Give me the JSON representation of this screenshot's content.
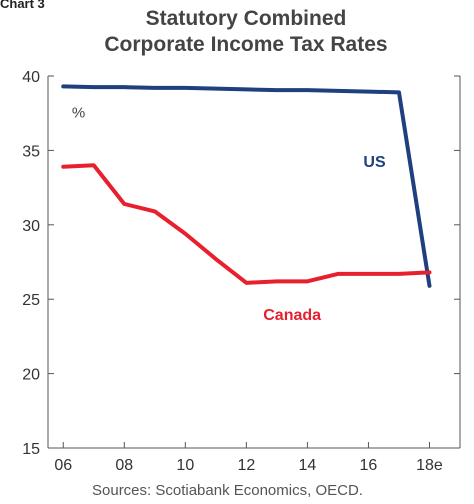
{
  "header": {
    "chart_label": "Chart 3",
    "title_line1": "Statutory Combined",
    "title_line2": "Corporate Income Tax Rates"
  },
  "footer": {
    "source": "Sources: Scotiabank Economics, OECD."
  },
  "colors": {
    "us": "#1f3f7f",
    "canada": "#e8202e",
    "axis": "#555555"
  },
  "chart_data": {
    "type": "line",
    "title": "Statutory Combined Corporate Income Tax Rates",
    "ylabel": "%",
    "ylim": [
      15,
      40
    ],
    "yticks": [
      15,
      20,
      25,
      30,
      35,
      40
    ],
    "xlim": [
      2005.5,
      2019
    ],
    "xticks": [
      {
        "x": 2006,
        "label": "06"
      },
      {
        "x": 2008,
        "label": "08"
      },
      {
        "x": 2010,
        "label": "10"
      },
      {
        "x": 2012,
        "label": "12"
      },
      {
        "x": 2014,
        "label": "14"
      },
      {
        "x": 2016,
        "label": "16"
      },
      {
        "x": 2018,
        "label": "18e"
      }
    ],
    "grid": false,
    "series": [
      {
        "name": "US",
        "x": [
          2006,
          2007,
          2008,
          2009,
          2010,
          2011,
          2012,
          2013,
          2014,
          2015,
          2016,
          2017,
          2018
        ],
        "values": [
          39.3,
          39.25,
          39.25,
          39.2,
          39.2,
          39.15,
          39.1,
          39.05,
          39.05,
          39.0,
          38.95,
          38.9,
          25.9
        ]
      },
      {
        "name": "Canada",
        "x": [
          2006,
          2007,
          2008,
          2009,
          2010,
          2011,
          2012,
          2013,
          2014,
          2015,
          2016,
          2017,
          2018
        ],
        "values": [
          33.9,
          34.0,
          31.4,
          30.9,
          29.4,
          27.7,
          26.1,
          26.2,
          26.2,
          26.7,
          26.7,
          26.7,
          26.8
        ]
      }
    ]
  }
}
